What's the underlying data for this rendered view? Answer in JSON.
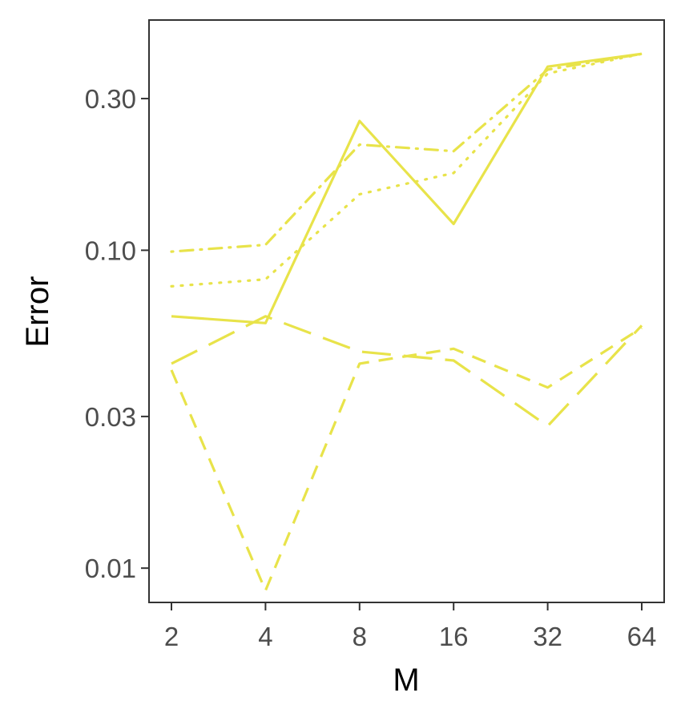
{
  "chart_data": {
    "type": "line",
    "title": "",
    "xlabel": "M",
    "ylabel": "Error",
    "x": [
      2,
      4,
      8,
      16,
      32,
      64
    ],
    "x_tick_labels": [
      "2",
      "4",
      "8",
      "16",
      "32",
      "64"
    ],
    "x_scale": "log2",
    "y_scale": "log10",
    "y_ticks": [
      0.01,
      0.03,
      0.1,
      0.3
    ],
    "y_tick_labels": [
      "0.01",
      "0.03",
      "0.10",
      "0.30"
    ],
    "ylim": [
      0.0078,
      0.53
    ],
    "grid": false,
    "legend": "none",
    "line_color": "#e8e34a",
    "series": [
      {
        "style": "solid",
        "values": [
          0.062,
          0.059,
          0.255,
          0.121,
          0.378,
          0.415
        ]
      },
      {
        "style": "longdash",
        "values": [
          0.044,
          0.062,
          0.048,
          0.045,
          0.028,
          0.058
        ]
      },
      {
        "style": "dashed",
        "values": [
          0.042,
          0.0085,
          0.044,
          0.049,
          0.037,
          0.057
        ]
      },
      {
        "style": "dotted",
        "values": [
          0.077,
          0.081,
          0.15,
          0.175,
          0.36,
          0.415
        ]
      },
      {
        "style": "dotdash",
        "values": [
          0.099,
          0.104,
          0.215,
          0.205,
          0.37,
          0.415
        ]
      }
    ]
  }
}
